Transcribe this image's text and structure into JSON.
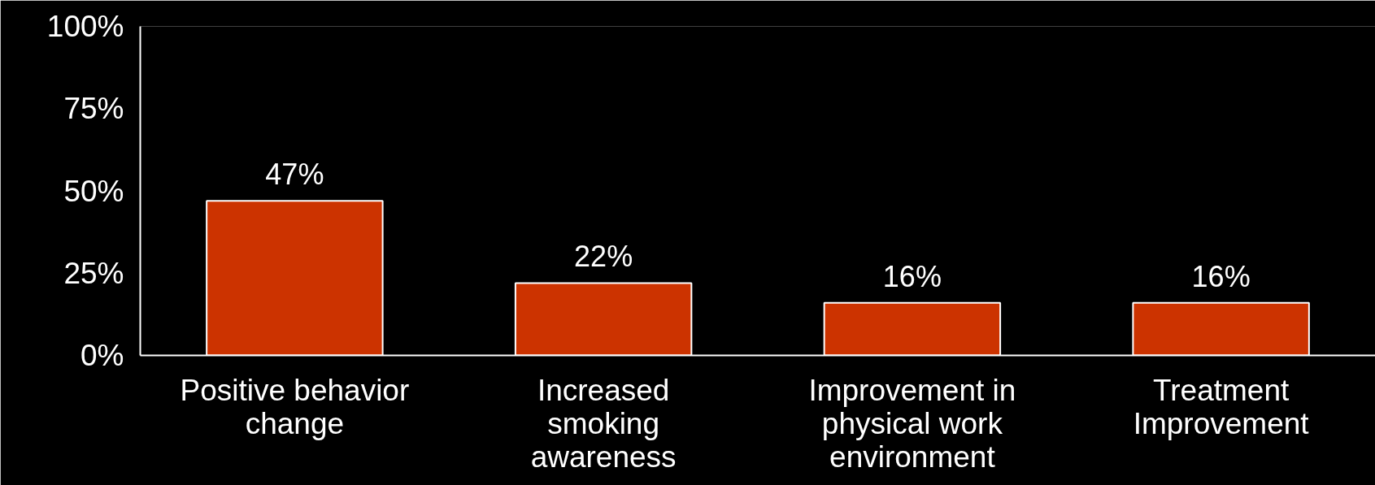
{
  "chart_data": {
    "type": "bar",
    "categories": [
      "Positive behavior\nchange",
      "Increased\nsmoking\nawareness",
      "Improvement in\nphysical work\nenvironment",
      "Treatment\nImprovement"
    ],
    "values": [
      47,
      22,
      16,
      16
    ],
    "value_labels": [
      "47%",
      "22%",
      "16%",
      "16%"
    ],
    "color": "#cc3300",
    "ylim": [
      0,
      100
    ],
    "yticks": [
      {
        "value": 0,
        "label": "0%"
      },
      {
        "value": 25,
        "label": "25%"
      },
      {
        "value": 50,
        "label": "50%"
      },
      {
        "value": 75,
        "label": "75%"
      },
      {
        "value": 100,
        "label": "100%"
      }
    ],
    "grid": false
  }
}
